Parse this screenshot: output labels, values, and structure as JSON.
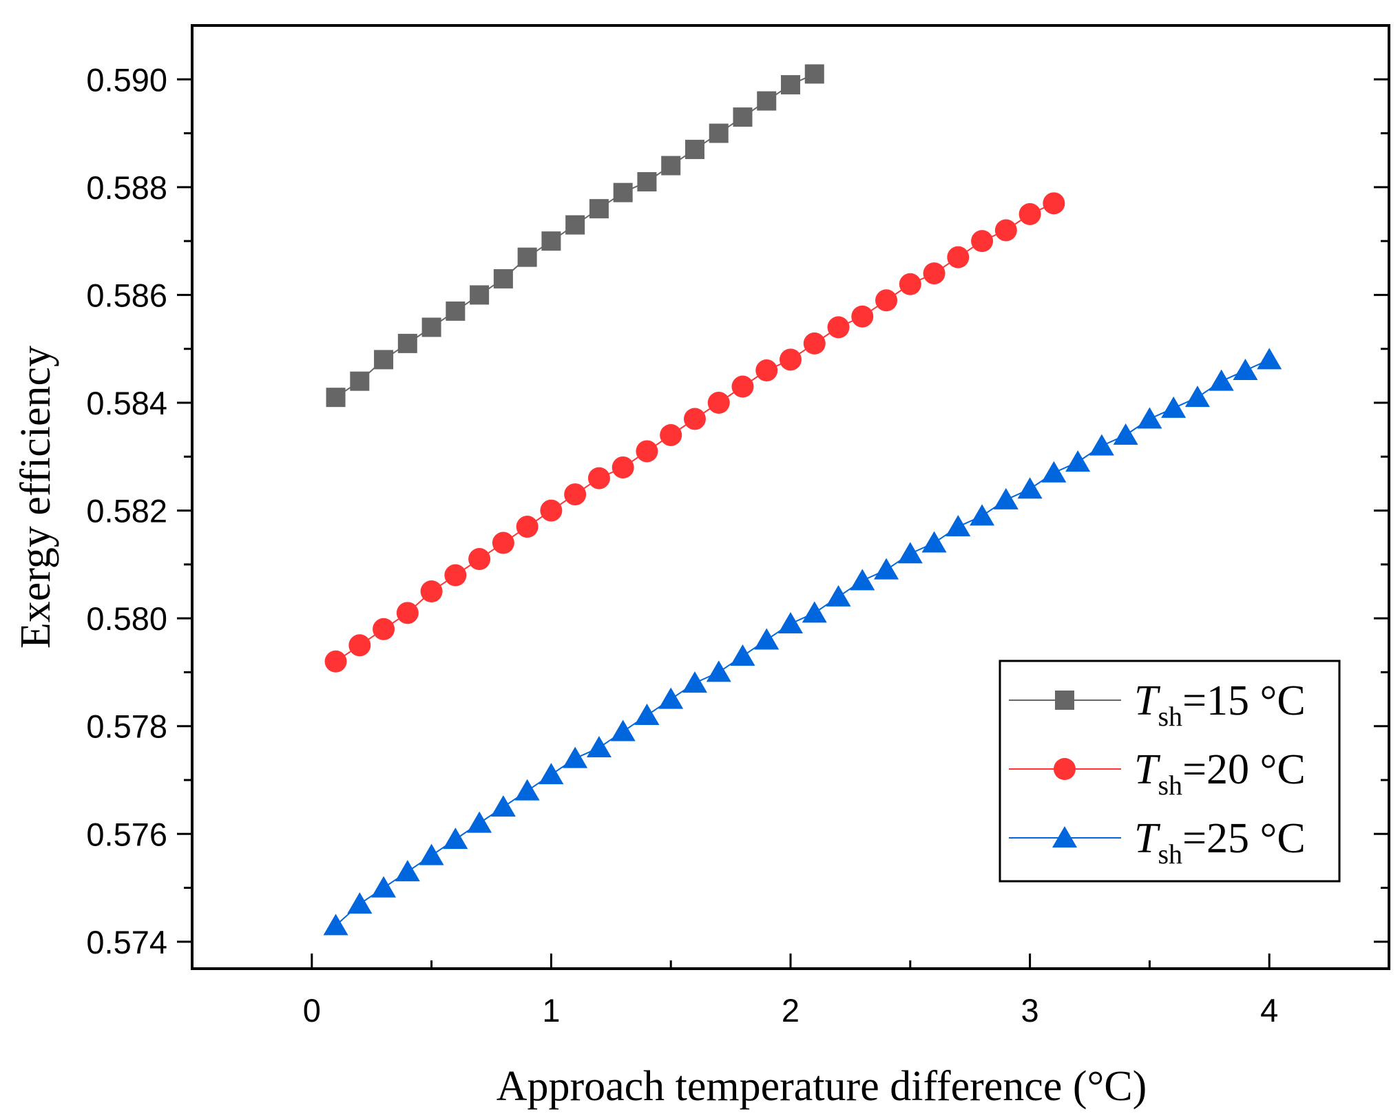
{
  "chart_data": {
    "type": "line",
    "title": "",
    "xlabel": "Approach temperature difference (°C)",
    "ylabel": "Exergy efficiency",
    "xlim": [
      -0.5,
      4.5
    ],
    "ylim": [
      0.5735,
      0.591
    ],
    "xticks": [
      0,
      1,
      2,
      3,
      4
    ],
    "xtick_labels": [
      "0",
      "1",
      "2",
      "3",
      "4"
    ],
    "yticks": [
      0.574,
      0.576,
      0.578,
      0.58,
      0.582,
      0.584,
      0.586,
      0.588,
      0.59
    ],
    "ytick_labels": [
      "0.574",
      "0.576",
      "0.578",
      "0.580",
      "0.582",
      "0.584",
      "0.586",
      "0.588",
      "0.590"
    ],
    "grid": false,
    "legend_position": "bottom-right",
    "series": [
      {
        "name": "Tsh=15 °C",
        "legend_var": "T",
        "legend_sub": "sh",
        "legend_rest": "=15 °C",
        "color": "#666666",
        "marker": "square",
        "x_start": 0.1,
        "x_step": 0.1,
        "values": [
          0.5841,
          0.5844,
          0.5848,
          0.5851,
          0.5854,
          0.5857,
          0.586,
          0.5863,
          0.5867,
          0.587,
          0.5873,
          0.5876,
          0.5879,
          0.5881,
          0.5884,
          0.5887,
          0.589,
          0.5893,
          0.5896,
          0.5899,
          0.5901
        ]
      },
      {
        "name": "Tsh=20 °C",
        "legend_var": "T",
        "legend_sub": "sh",
        "legend_rest": "=20 °C",
        "color": "#ff3333",
        "marker": "circle",
        "x_start": 0.1,
        "x_step": 0.1,
        "values": [
          0.5792,
          0.5795,
          0.5798,
          0.5801,
          0.5805,
          0.5808,
          0.5811,
          0.5814,
          0.5817,
          0.582,
          0.5823,
          0.5826,
          0.5828,
          0.5831,
          0.5834,
          0.5837,
          0.584,
          0.5843,
          0.5846,
          0.5848,
          0.5851,
          0.5854,
          0.5856,
          0.5859,
          0.5862,
          0.5864,
          0.5867,
          0.587,
          0.5872,
          0.5875,
          0.5877
        ]
      },
      {
        "name": "Tsh=25 °C",
        "legend_var": "T",
        "legend_sub": "sh",
        "legend_rest": "=25 °C",
        "color": "#0066dd",
        "marker": "triangle",
        "x_start": 0.1,
        "x_step": 0.1,
        "values": [
          0.5743,
          0.5747,
          0.575,
          0.5753,
          0.5756,
          0.5759,
          0.5762,
          0.5765,
          0.5768,
          0.5771,
          0.5774,
          0.5776,
          0.5779,
          0.5782,
          0.5785,
          0.5788,
          0.579,
          0.5793,
          0.5796,
          0.5799,
          0.5801,
          0.5804,
          0.5807,
          0.5809,
          0.5812,
          0.5814,
          0.5817,
          0.5819,
          0.5822,
          0.5824,
          0.5827,
          0.5829,
          0.5832,
          0.5834,
          0.5837,
          0.5839,
          0.5841,
          0.5844,
          0.5846,
          0.5848
        ]
      }
    ]
  }
}
